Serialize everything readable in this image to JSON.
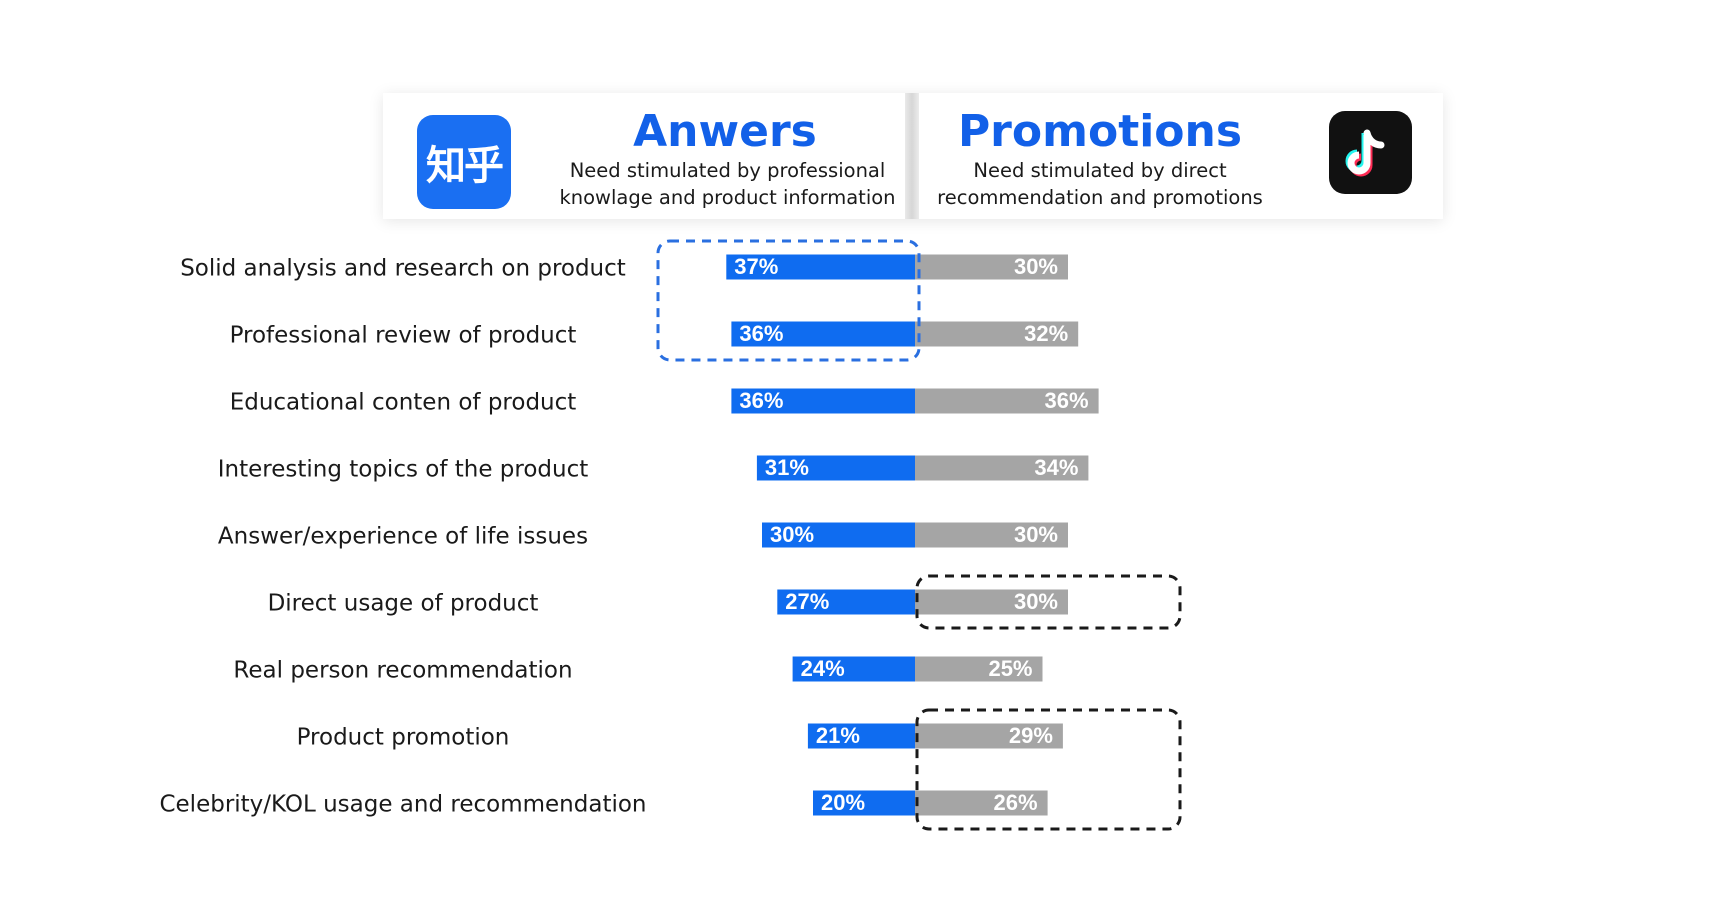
{
  "header": {
    "left": {
      "logo_text": "知乎",
      "logo_icon": "zhihu-logo",
      "title": "Anwers",
      "subtitle_line1": "Need stimulated by professional",
      "subtitle_line2": "knowlage and product information"
    },
    "right": {
      "logo_icon": "tiktok-logo",
      "title": "Promotions",
      "subtitle_line1": "Need stimulated by direct",
      "subtitle_line2": "recommendation and promotions"
    }
  },
  "colors": {
    "left_series": "#0f6cf0",
    "right_series": "#a5a5a5",
    "title": "#1260e8",
    "highlight_blue": "#2a6fe0",
    "highlight_black": "#1a1a1a"
  },
  "chart_data": {
    "type": "bar",
    "orientation": "horizontal-diverging",
    "categories": [
      "Solid analysis and research on product",
      "Professional review of product",
      "Educational conten of product",
      "Interesting topics of the product",
      "Answer/experience of life issues",
      "Direct usage of product",
      "Real person recommendation",
      "Product promotion",
      "Celebrity/KOL usage and recommendation"
    ],
    "series": [
      {
        "values": [
          37,
          36,
          36,
          31,
          30,
          27,
          24,
          21,
          20
        ],
        "labels": [
          "37%",
          "36%",
          "36%",
          "31%",
          "30%",
          "27%",
          "24%",
          "21%",
          "20%"
        ]
      },
      {
        "values": [
          30,
          32,
          36,
          34,
          30,
          30,
          25,
          29,
          26
        ],
        "labels": [
          "30%",
          "32%",
          "36%",
          "34%",
          "30%",
          "30%",
          "25%",
          "29%",
          "26%"
        ]
      }
    ],
    "unit": "%",
    "highlights": [
      {
        "series": 0,
        "categories": [
          0,
          1
        ],
        "style": "dashed",
        "color": "blue"
      },
      {
        "series": 1,
        "categories": [
          5
        ],
        "style": "dashed",
        "color": "black"
      },
      {
        "series": 1,
        "categories": [
          7,
          8
        ],
        "style": "dashed",
        "color": "black"
      }
    ]
  }
}
